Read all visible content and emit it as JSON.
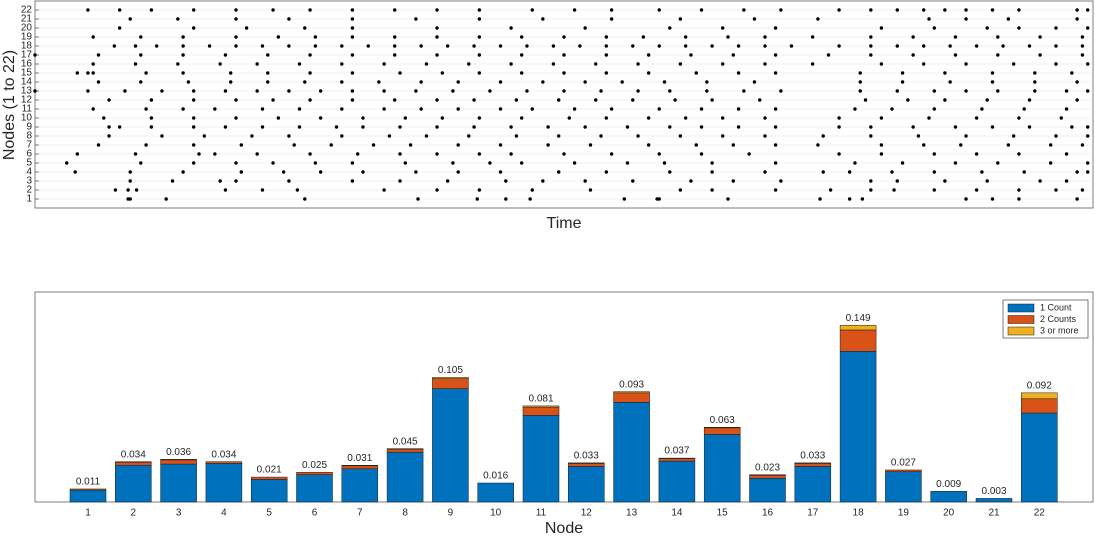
{
  "chart_data": [
    {
      "type": "raster",
      "xlabel": "Time",
      "ylabel": "Nodes (1 to 22)",
      "xlim": [
        0,
        1000
      ],
      "ylim": [
        0,
        23
      ],
      "yticks": [
        1,
        2,
        3,
        4,
        5,
        6,
        7,
        8,
        9,
        10,
        11,
        12,
        13,
        14,
        15,
        16,
        17,
        18,
        19,
        20,
        21,
        22
      ],
      "grid": true,
      "color": "#000000",
      "rows": [
        1,
        2,
        3,
        4,
        5,
        6,
        7,
        8,
        9,
        10,
        11,
        12,
        13,
        14,
        15,
        16,
        17,
        18,
        19,
        20,
        21,
        22
      ],
      "events": [
        [
          88,
          90,
          124,
          255,
          362,
          418,
          445,
          468,
          557,
          588,
          590,
          655,
          742,
          770,
          782,
          880,
          905,
          930,
          985
        ],
        [
          76,
          88,
          96,
          180,
          215,
          248,
          330,
          380,
          420,
          470,
          525,
          610,
          640,
          700,
          752,
          790,
          812,
          850,
          890,
          930,
          965,
          990
        ],
        [
          90,
          130,
          175,
          190,
          240,
          300,
          345,
          390,
          445,
          480,
          520,
          565,
          620,
          660,
          705,
          790,
          815,
          860,
          900,
          950,
          975
        ],
        [
          38,
          90,
          140,
          195,
          235,
          270,
          310,
          360,
          400,
          440,
          495,
          540,
          600,
          640,
          690,
          745,
          770,
          810,
          850,
          895,
          935,
          985,
          995
        ],
        [
          30,
          100,
          150,
          190,
          225,
          265,
          300,
          350,
          395,
          430,
          460,
          510,
          560,
          595,
          640,
          700,
          775,
          820,
          870,
          910,
          960,
          995
        ],
        [
          40,
          95,
          155,
          170,
          210,
          260,
          305,
          345,
          380,
          420,
          450,
          500,
          545,
          590,
          630,
          675,
          760,
          800,
          850,
          890,
          930,
          975
        ],
        [
          60,
          105,
          150,
          195,
          245,
          280,
          320,
          355,
          400,
          440,
          485,
          525,
          580,
          625,
          660,
          700,
          740,
          800,
          840,
          875,
          920,
          960,
          990
        ],
        [
          70,
          120,
          160,
          205,
          240,
          290,
          335,
          370,
          410,
          455,
          495,
          535,
          570,
          610,
          650,
          690,
          745,
          790,
          835,
          880,
          925,
          965,
          995
        ],
        [
          70,
          80,
          110,
          150,
          180,
          215,
          250,
          285,
          310,
          345,
          380,
          415,
          450,
          485,
          520,
          560,
          600,
          630,
          665,
          700,
          760,
          790,
          830,
          870,
          905,
          940,
          980,
          995
        ],
        [
          65,
          110,
          150,
          190,
          230,
          270,
          310,
          350,
          385,
          420,
          460,
          505,
          540,
          580,
          615,
          650,
          690,
          760,
          800,
          845,
          890,
          930,
          970
        ],
        [
          55,
          105,
          140,
          170,
          215,
          250,
          290,
          330,
          365,
          400,
          440,
          470,
          510,
          545,
          590,
          630,
          665,
          700,
          775,
          810,
          850,
          895,
          935,
          975
        ],
        [
          70,
          110,
          150,
          190,
          225,
          260,
          300,
          340,
          380,
          415,
          455,
          495,
          530,
          565,
          605,
          640,
          685,
          785,
          825,
          860,
          900,
          940,
          985
        ],
        [
          0,
          50,
          85,
          120,
          150,
          180,
          210,
          240,
          270,
          300,
          330,
          360,
          395,
          430,
          465,
          500,
          535,
          570,
          600,
          635,
          670,
          705,
          780,
          815,
          850,
          880,
          910,
          945,
          975,
          995
        ],
        [
          60,
          100,
          145,
          185,
          220,
          255,
          290,
          325,
          365,
          400,
          440,
          480,
          520,
          555,
          595,
          635,
          680,
          780,
          820,
          865,
          905,
          945,
          985
        ],
        [
          40,
          50,
          55,
          105,
          140,
          185,
          220,
          260,
          300,
          345,
          385,
          420,
          460,
          500,
          540,
          580,
          625,
          665,
          700,
          780,
          820,
          860,
          905,
          945,
          980
        ],
        [
          55,
          95,
          135,
          175,
          210,
          250,
          290,
          330,
          370,
          410,
          450,
          490,
          530,
          570,
          610,
          650,
          690,
          735,
          800,
          840,
          880,
          925,
          965,
          995
        ],
        [
          0,
          60,
          100,
          140,
          180,
          220,
          260,
          300,
          340,
          380,
          420,
          460,
          500,
          540,
          580,
          620,
          660,
          700,
          750,
          790,
          830,
          870,
          910,
          950,
          990
        ],
        [
          75,
          95,
          115,
          140,
          165,
          190,
          215,
          240,
          265,
          290,
          315,
          340,
          365,
          390,
          415,
          440,
          465,
          490,
          515,
          540,
          565,
          590,
          615,
          640,
          665,
          690,
          715,
          760,
          790,
          815,
          840,
          865,
          890,
          915,
          940,
          965,
          990
        ],
        [
          55,
          100,
          140,
          190,
          230,
          265,
          300,
          340,
          380,
          420,
          460,
          500,
          540,
          575,
          615,
          655,
          690,
          735,
          790,
          830,
          870,
          910,
          950,
          990
        ],
        [
          80,
          150,
          200,
          255,
          300,
          380,
          450,
          520,
          600,
          650,
          700,
          800,
          850,
          900,
          930,
          965,
          995
        ],
        [
          90,
          135,
          190,
          240,
          300,
          360,
          420,
          480,
          545,
          610,
          680,
          740,
          845,
          880,
          920,
          985
        ],
        [
          50,
          80,
          110,
          150,
          190,
          225,
          260,
          300,
          340,
          380,
          420,
          470,
          510,
          545,
          590,
          630,
          670,
          705,
          760,
          790,
          815,
          840,
          860,
          880,
          905,
          930,
          985,
          995
        ]
      ]
    },
    {
      "type": "stacked-bar",
      "xlabel": "Node",
      "categories": [
        "1",
        "2",
        "3",
        "4",
        "5",
        "6",
        "7",
        "8",
        "9",
        "10",
        "11",
        "12",
        "13",
        "14",
        "15",
        "16",
        "17",
        "18",
        "19",
        "20",
        "21",
        "22"
      ],
      "ylim": [
        0,
        0.177
      ],
      "legend": "upper-right",
      "series": [
        {
          "name": "1 Count",
          "color": "#0072BD",
          "values": [
            0.01,
            0.031,
            0.032,
            0.0325,
            0.019,
            0.023,
            0.028,
            0.042,
            0.0955,
            0.016,
            0.073,
            0.03,
            0.084,
            0.0345,
            0.057,
            0.02,
            0.03,
            0.127,
            0.0255,
            0.009,
            0.003,
            0.075
          ]
        },
        {
          "name": "2 Counts",
          "color": "#D95319",
          "values": [
            0.001,
            0.0025,
            0.0035,
            0.0015,
            0.002,
            0.002,
            0.0025,
            0.0025,
            0.0085,
            0,
            0.007,
            0.0025,
            0.008,
            0.002,
            0.0055,
            0.0025,
            0.0025,
            0.018,
            0.0015,
            0,
            0,
            0.012
          ]
        },
        {
          "name": "3 or more",
          "color": "#EDB120",
          "values": [
            0,
            0.0005,
            0.0005,
            0,
            0,
            0,
            0.0005,
            0.0005,
            0.001,
            0,
            0.001,
            0.0005,
            0.001,
            0.0005,
            0.0005,
            0.0005,
            0.0005,
            0.004,
            0,
            0,
            0,
            0.005
          ]
        }
      ],
      "totals": [
        0.011,
        0.034,
        0.036,
        0.034,
        0.021,
        0.025,
        0.031,
        0.045,
        0.105,
        0.016,
        0.081,
        0.033,
        0.093,
        0.037,
        0.063,
        0.023,
        0.033,
        0.149,
        0.027,
        0.009,
        0.003,
        0.092
      ]
    }
  ]
}
